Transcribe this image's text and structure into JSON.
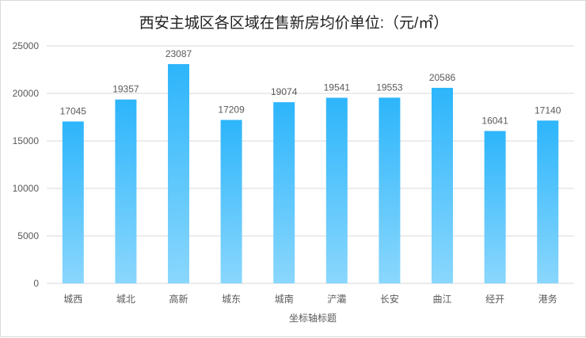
{
  "chart_data": {
    "type": "bar",
    "title": "西安主城区各区域在售新房均价单位:（元/㎡）",
    "xlabel": "坐标轴标题",
    "ylabel": "",
    "ylim": [
      0,
      25000
    ],
    "yticks": [
      0,
      5000,
      10000,
      15000,
      20000,
      25000
    ],
    "categories": [
      "城西",
      "城北",
      "高新",
      "城东",
      "城南",
      "浐灞",
      "长安",
      "曲江",
      "经开",
      "港务"
    ],
    "values": [
      17045,
      19357,
      23087,
      17209,
      19074,
      19541,
      19553,
      20586,
      16041,
      17140
    ],
    "grid": true,
    "data_labels": true,
    "colors": {
      "bar_top": "#2db5fb",
      "bar_bottom": "#8ad7fd",
      "grid": "#d9d9d9"
    }
  }
}
